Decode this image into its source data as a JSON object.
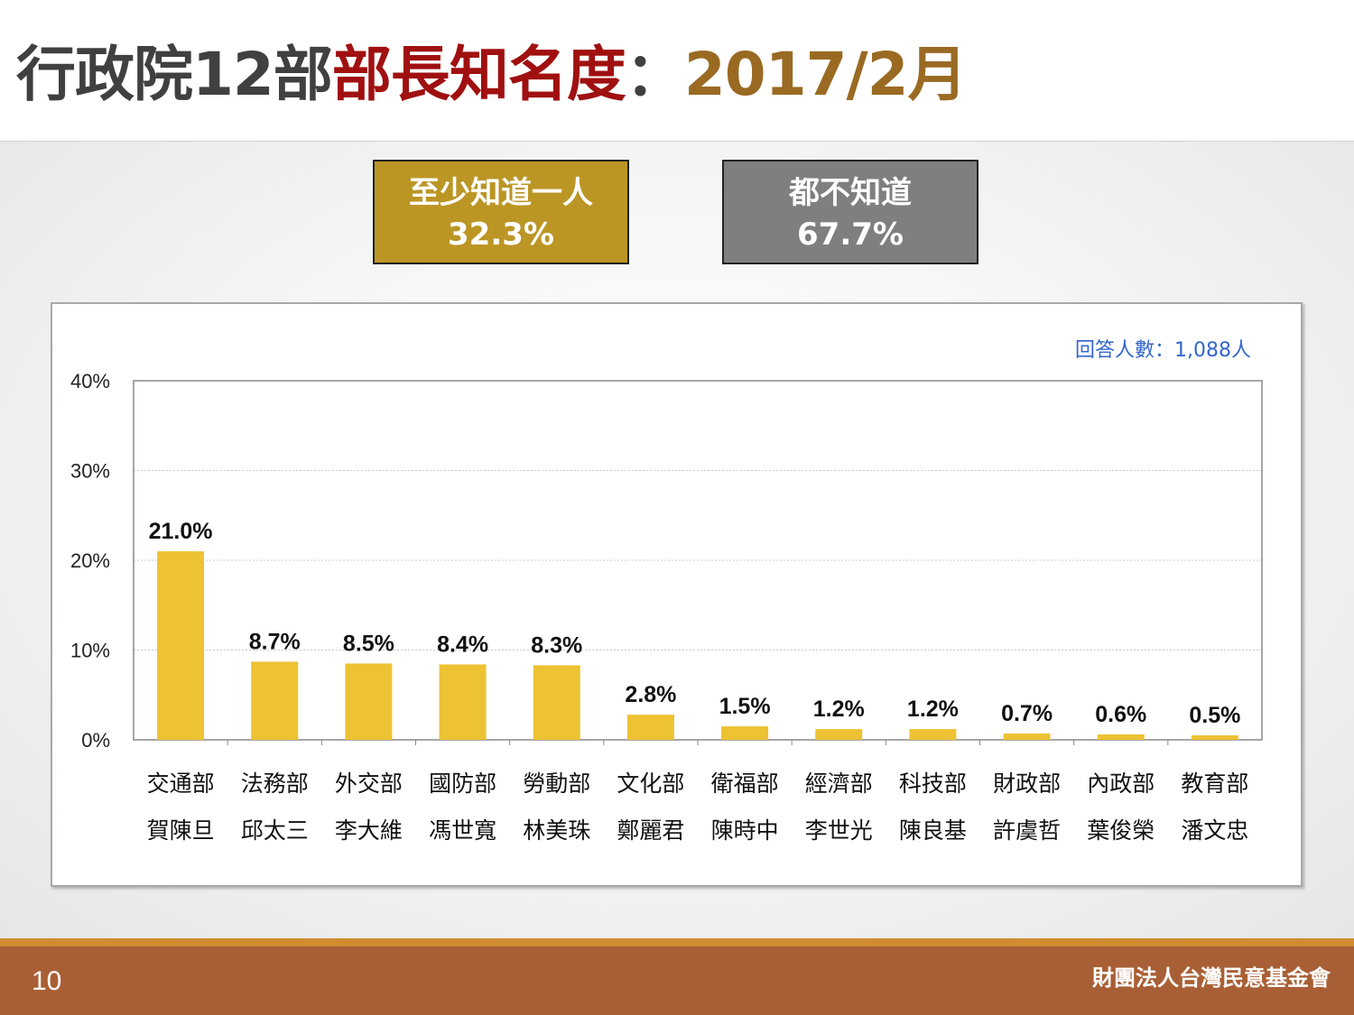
{
  "title": {
    "part1": "行政院12部",
    "part2": "部長知名度",
    "part3": "：",
    "part4": "2017/2月"
  },
  "summary": {
    "know": {
      "label": "至少知道一人",
      "value": "32.3%"
    },
    "dont_know": {
      "label": "都不知道",
      "value": "67.7%"
    }
  },
  "colors": {
    "bar": "#edc233",
    "know_box": "#bb9625",
    "dont_box": "#7f7f7f",
    "respondents_text": "#3366cc",
    "footer": "#a95f35"
  },
  "chart_data": {
    "type": "bar",
    "respondents_note": "回答人數：1,088人",
    "categories": [
      "交通部",
      "法務部",
      "外交部",
      "國防部",
      "勞動部",
      "文化部",
      "衛福部",
      "經濟部",
      "科技部",
      "財政部",
      "內政部",
      "教育部"
    ],
    "ministers": [
      "賀陳旦",
      "邱太三",
      "李大維",
      "馮世寬",
      "林美珠",
      "鄭麗君",
      "陳時中",
      "李世光",
      "陳良基",
      "許虞哲",
      "葉俊榮",
      "潘文忠"
    ],
    "values": [
      21.0,
      8.7,
      8.5,
      8.4,
      8.3,
      2.8,
      1.5,
      1.2,
      1.2,
      0.7,
      0.6,
      0.5
    ],
    "value_labels": [
      "21.0%",
      "8.7%",
      "8.5%",
      "8.4%",
      "8.3%",
      "2.8%",
      "1.5%",
      "1.2%",
      "1.2%",
      "0.7%",
      "0.6%",
      "0.5%"
    ],
    "y_ticks": [
      "0%",
      "10%",
      "20%",
      "30%",
      "40%"
    ],
    "ylim": [
      0,
      40
    ],
    "grid": true
  },
  "footer": {
    "page_number": "10",
    "organization": "財團法人台灣民意基金會"
  }
}
